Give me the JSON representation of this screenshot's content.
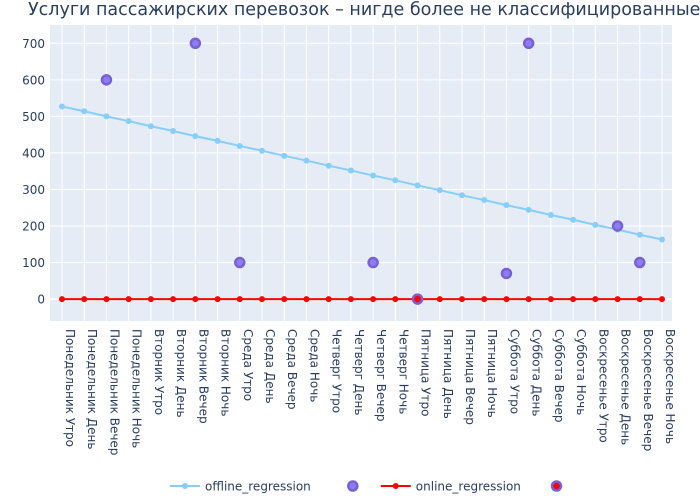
{
  "chart_data": {
    "type": "line",
    "title": "Услуги пассажирских перевозок – нигде более не классифицированные",
    "xlabel": "",
    "ylabel": "",
    "categories": [
      "Понедельник Утро",
      "Понедельник День",
      "Понедельник Вечер",
      "Понедельник Ночь",
      "Вторник Утро",
      "Вторник День",
      "Вторник Вечер",
      "Вторник Ночь",
      "Среда Утро",
      "Среда День",
      "Среда Вечер",
      "Среда Ночь",
      "Четверг Утро",
      "Четверг День",
      "Четверг Вечер",
      "Четверг Ночь",
      "Пятница Утро",
      "Пятница День",
      "Пятница Вечер",
      "Пятница Ночь",
      "Суббота Утро",
      "Суббота День",
      "Суббота Вечер",
      "Суббота Ночь",
      "Воскресенье Утро",
      "Воскресенье День",
      "Воскресенье Вечер",
      "Воскресенье Ночь"
    ],
    "ylim": [
      -60,
      750
    ],
    "yticks": [
      0,
      100,
      200,
      300,
      400,
      500,
      600,
      700
    ],
    "grid": true,
    "legend_position": "bottom",
    "series": [
      {
        "name": "offline_regression",
        "kind": "line",
        "color": "#87cefa",
        "values": [
          527,
          514,
          500,
          487,
          473,
          460,
          446,
          433,
          419,
          406,
          392,
          379,
          365,
          352,
          338,
          325,
          311,
          298,
          284,
          271,
          257,
          244,
          230,
          217,
          203,
          190,
          176,
          163
        ]
      },
      {
        "name": "",
        "kind": "anomaly",
        "color": "#8a7ff0",
        "edge": "#7b5fd6",
        "points": [
          {
            "x": "Понедельник Вечер",
            "y": 600
          },
          {
            "x": "Вторник Вечер",
            "y": 700
          },
          {
            "x": "Среда Утро",
            "y": 100
          },
          {
            "x": "Четверг Вечер",
            "y": 100
          },
          {
            "x": "Суббота Утро",
            "y": 70
          },
          {
            "x": "Суббота День",
            "y": 700
          },
          {
            "x": "Воскресенье День",
            "y": 200
          },
          {
            "x": "Воскресенье Вечер",
            "y": 100
          }
        ]
      },
      {
        "name": "online_regression",
        "kind": "line",
        "color": "#ff0000",
        "values": [
          0,
          0,
          0,
          0,
          0,
          0,
          0,
          0,
          0,
          0,
          0,
          0,
          0,
          0,
          0,
          0,
          0,
          0,
          0,
          0,
          0,
          0,
          0,
          0,
          0,
          0,
          0,
          0
        ]
      },
      {
        "name": "",
        "kind": "anomaly",
        "color": "#ff0000",
        "edge": "#7b5fd6",
        "points": [
          {
            "x": "Пятница Утро",
            "y": 0
          }
        ]
      }
    ]
  },
  "colors": {
    "plot_background": "#e5ecf6",
    "grid": "#ffffff",
    "text": "#2a3f5f"
  }
}
